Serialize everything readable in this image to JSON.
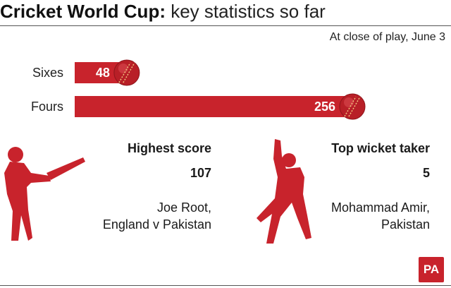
{
  "title_bold": "Cricket World Cup:",
  "title_rest": " key statistics so far",
  "subtitle": "At close of play, June 3",
  "colors": {
    "accent": "#c8232c",
    "ball_seam": "#f1c27d"
  },
  "chart_data": {
    "type": "bar",
    "orientation": "horizontal",
    "categories": [
      "Sixes",
      "Fours"
    ],
    "values": [
      48,
      256
    ],
    "title": "Cricket World Cup: key statistics so far",
    "subtitle": "At close of play, June 3",
    "xlabel": "",
    "ylabel": "",
    "xlim": [
      0,
      256
    ],
    "grid": false,
    "legend": "none"
  },
  "stats": {
    "highest": {
      "heading": "Highest score",
      "value": "107",
      "name_line1": "Joe Root,",
      "name_line2": "England v Pakistan"
    },
    "wicket": {
      "heading": "Top wicket taker",
      "value": "5",
      "name_line1": "Mohammad Amir,",
      "name_line2": "Pakistan"
    }
  },
  "icons": {
    "batsman": "batsman-silhouette-icon",
    "bowler": "bowler-silhouette-icon",
    "ball": "cricket-ball-icon"
  },
  "logo_text": "PA"
}
